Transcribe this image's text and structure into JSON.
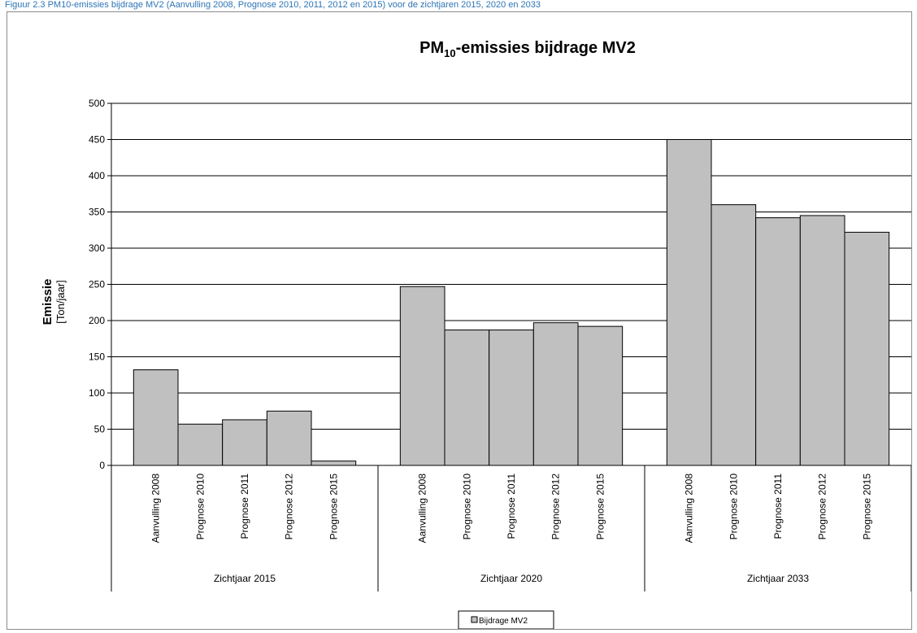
{
  "caption": "Figuur 2.3 PM10-emissies bijdrage MV2 (Aanvulling 2008, Prognose 2010, 2011, 2012 en 2015) voor de zichtjaren 2015, 2020 en 2033",
  "chart_data": {
    "type": "bar",
    "title_prefix": "PM",
    "title_sub": "10",
    "title_suffix": "-emissies bijdrage MV2",
    "ylabel": "Emissie",
    "yunit": "[Ton/jaar]",
    "ylim": [
      0,
      500
    ],
    "yticks": [
      "0",
      "50",
      "100",
      "150",
      "200",
      "250",
      "300",
      "350",
      "400",
      "450",
      "500"
    ],
    "grid": true,
    "legend_position": "bottom-center",
    "bar_color": "#c0c0c0",
    "series": [
      {
        "name": "Bijdrage MV2"
      }
    ],
    "groups": [
      {
        "label": "Zichtjaar 2015",
        "categories": [
          "Aanvulling 2008",
          "Prognose 2010",
          "Prognose 2011",
          "Prognose 2012",
          "Prognose 2015"
        ],
        "values": [
          132,
          57,
          63,
          75,
          6
        ]
      },
      {
        "label": "Zichtjaar 2020",
        "categories": [
          "Aanvulling 2008",
          "Prognose 2010",
          "Prognose 2011",
          "Prognose 2012",
          "Prognose 2015"
        ],
        "values": [
          247,
          187,
          187,
          197,
          192
        ]
      },
      {
        "label": "Zichtjaar 2033",
        "categories": [
          "Aanvulling 2008",
          "Prognose 2010",
          "Prognose 2011",
          "Prognose 2012",
          "Prognose 2015"
        ],
        "values": [
          450,
          360,
          342,
          345,
          322
        ]
      }
    ]
  }
}
